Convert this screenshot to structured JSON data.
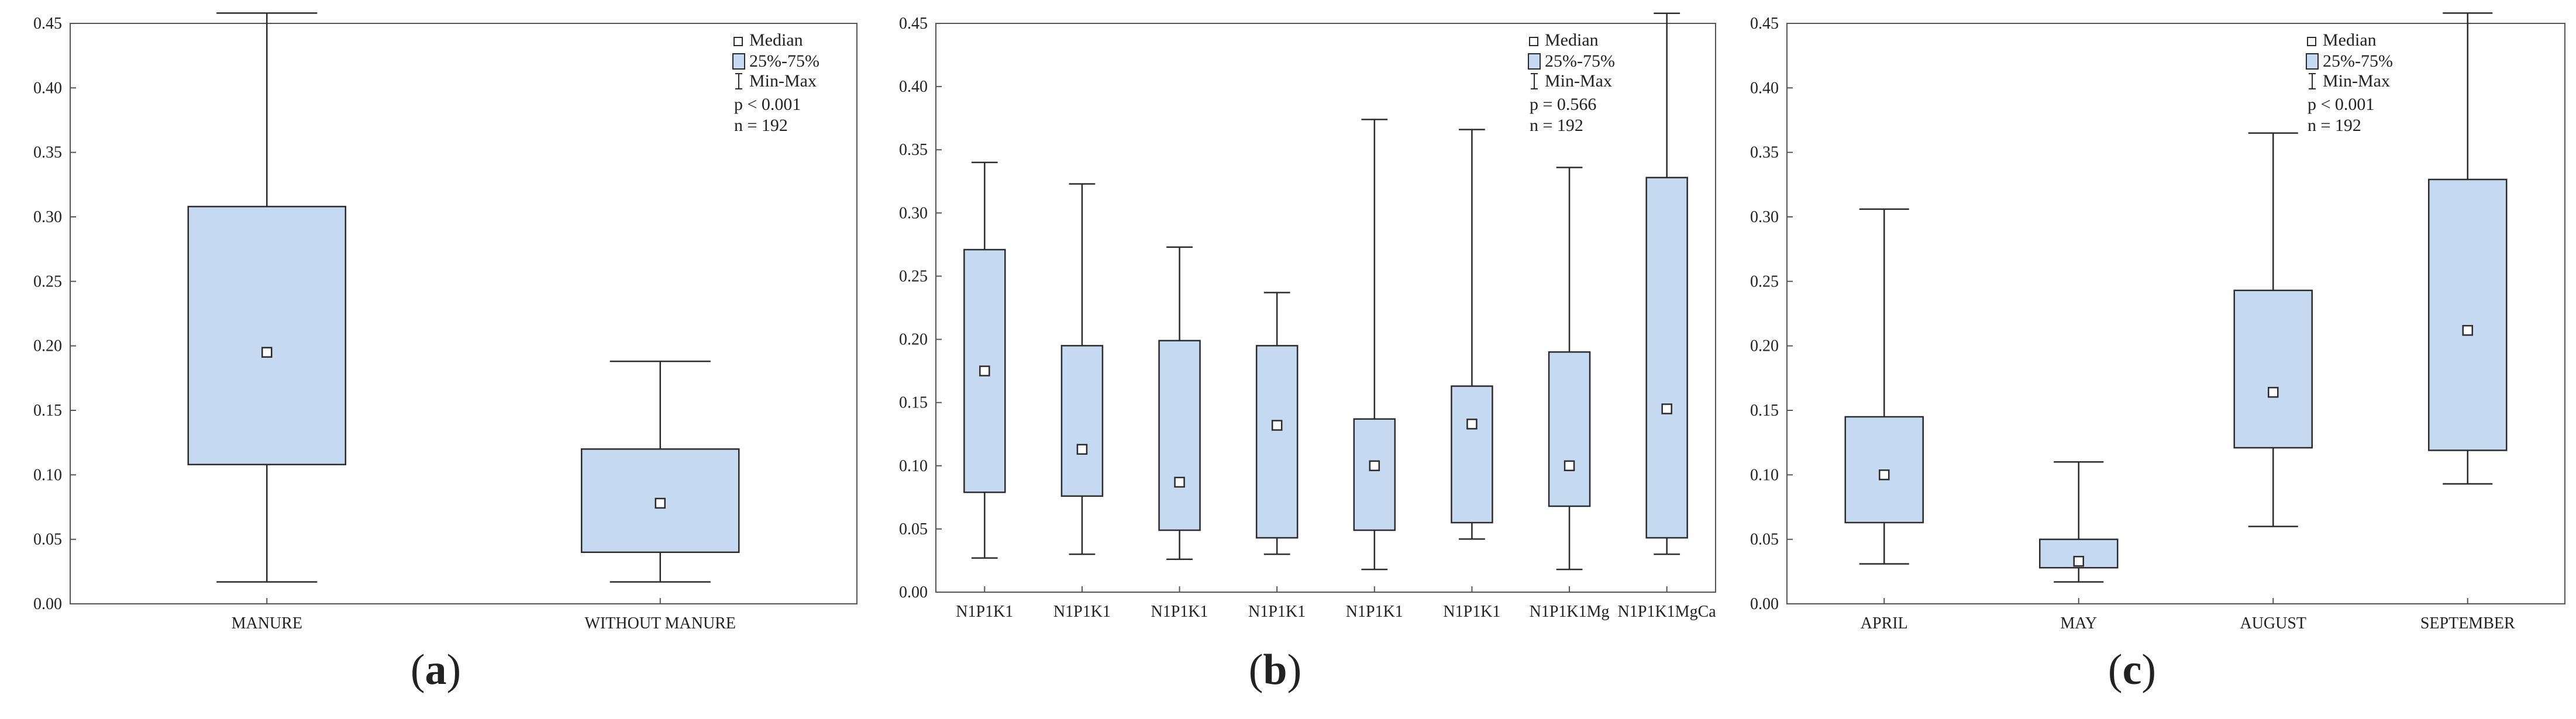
{
  "chart_data": [
    {
      "type": "boxplot",
      "panel_label": "(a)",
      "panel_letter": "a",
      "ylim": [
        0,
        0.45
      ],
      "yticks": [
        "0.00",
        "0.05",
        "0.10",
        "0.15",
        "0.20",
        "0.25",
        "0.30",
        "0.35",
        "0.40",
        "0.45"
      ],
      "categories": [
        "MANURE",
        "WITHOUT MANURE"
      ],
      "series": [
        {
          "name": "MANURE",
          "min": 0.017,
          "q1": 0.108,
          "median": 0.195,
          "q3": 0.308,
          "max": 0.458
        },
        {
          "name": "WITHOUT MANURE",
          "min": 0.017,
          "q1": 0.04,
          "median": 0.078,
          "q3": 0.12,
          "max": 0.188
        }
      ],
      "legend": {
        "median": "Median",
        "box": "25%-75%",
        "whisker": "Min-Max",
        "p": "p < 0.001",
        "n": "n = 192",
        "placement": "top-right"
      }
    },
    {
      "type": "boxplot",
      "panel_label": "(b)",
      "panel_letter": "b",
      "ylim": [
        0,
        0.45
      ],
      "yticks": [
        "0.00",
        "0.05",
        "0.10",
        "0.15",
        "0.20",
        "0.25",
        "0.30",
        "0.35",
        "0.40",
        "0.45"
      ],
      "categories": [
        "N1P1K1",
        "N1P1K1",
        "N1P1K1",
        "N1P1K1",
        "N1P1K1",
        "N1P1K1",
        "N1P1K1Mg",
        "N1P1K1MgCa"
      ],
      "series": [
        {
          "name": "N1P1K1",
          "min": 0.027,
          "q1": 0.079,
          "median": 0.175,
          "q3": 0.271,
          "max": 0.34
        },
        {
          "name": "N1P1K1",
          "min": 0.03,
          "q1": 0.076,
          "median": 0.113,
          "q3": 0.195,
          "max": 0.323
        },
        {
          "name": "N1P1K1",
          "min": 0.026,
          "q1": 0.049,
          "median": 0.087,
          "q3": 0.199,
          "max": 0.273
        },
        {
          "name": "N1P1K1",
          "min": 0.03,
          "q1": 0.043,
          "median": 0.132,
          "q3": 0.195,
          "max": 0.237
        },
        {
          "name": "N1P1K1",
          "min": 0.018,
          "q1": 0.049,
          "median": 0.1,
          "q3": 0.137,
          "max": 0.374
        },
        {
          "name": "N1P1K1",
          "min": 0.042,
          "q1": 0.055,
          "median": 0.133,
          "q3": 0.163,
          "max": 0.366
        },
        {
          "name": "N1P1K1Mg",
          "min": 0.018,
          "q1": 0.068,
          "median": 0.1,
          "q3": 0.19,
          "max": 0.336
        },
        {
          "name": "N1P1K1MgCa",
          "min": 0.03,
          "q1": 0.043,
          "median": 0.145,
          "q3": 0.328,
          "max": 0.458
        }
      ],
      "legend": {
        "median": "Median",
        "box": "25%-75%",
        "whisker": "Min-Max",
        "p": "p = 0.566",
        "n": "n = 192",
        "placement": "top-right"
      }
    },
    {
      "type": "boxplot",
      "panel_label": "(c)",
      "panel_letter": "c",
      "ylim": [
        0,
        0.45
      ],
      "yticks": [
        "0.00",
        "0.05",
        "0.10",
        "0.15",
        "0.20",
        "0.25",
        "0.30",
        "0.35",
        "0.40",
        "0.45"
      ],
      "categories": [
        "APRIL",
        "MAY",
        "AUGUST",
        "SEPTEMBER"
      ],
      "series": [
        {
          "name": "APRIL",
          "min": 0.031,
          "q1": 0.063,
          "median": 0.1,
          "q3": 0.145,
          "max": 0.306
        },
        {
          "name": "MAY",
          "min": 0.017,
          "q1": 0.028,
          "median": 0.033,
          "q3": 0.05,
          "max": 0.11
        },
        {
          "name": "AUGUST",
          "min": 0.06,
          "q1": 0.121,
          "median": 0.164,
          "q3": 0.243,
          "max": 0.365
        },
        {
          "name": "SEPTEMBER",
          "min": 0.093,
          "q1": 0.119,
          "median": 0.212,
          "q3": 0.329,
          "max": 0.458
        }
      ],
      "legend": {
        "median": "Median",
        "box": "25%-75%",
        "whisker": "Min-Max",
        "p": "p < 0.001",
        "n": "n = 192",
        "placement": "top-right"
      }
    }
  ],
  "colors": {
    "box_fill": "#c5daf0",
    "stroke": "#2b2b2b",
    "axis": "#555555",
    "text": "#222222"
  }
}
